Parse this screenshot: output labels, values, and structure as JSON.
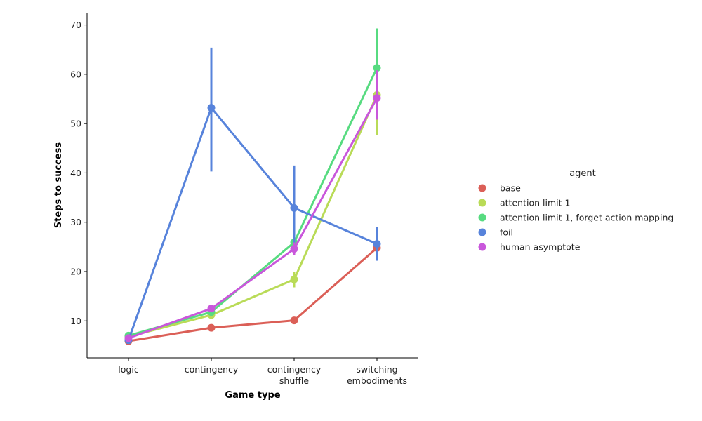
{
  "chart_data": {
    "type": "line",
    "xlabel": "Game type",
    "ylabel": "Steps to success",
    "categories": [
      [
        "logic"
      ],
      [
        "contingency"
      ],
      [
        "contingency",
        "shuffle"
      ],
      [
        "switching",
        "embodiments"
      ]
    ],
    "ylim": [
      2.5,
      72.5
    ],
    "yticks": [
      10,
      20,
      30,
      40,
      50,
      60,
      70
    ],
    "grid": false,
    "legend": {
      "title": "agent",
      "placement": "right"
    },
    "series": [
      {
        "name": "base",
        "color": "#db5f57",
        "values": [
          5.9,
          8.6,
          10.1,
          24.8
        ],
        "err_low": [
          5.7,
          8.3,
          9.8,
          23.3
        ],
        "err_high": [
          6.1,
          8.9,
          10.4,
          26.2
        ]
      },
      {
        "name": "attention limit 1",
        "color": "#b9db57",
        "values": [
          6.8,
          11.2,
          18.4,
          55.8
        ],
        "err_low": [
          6.5,
          10.5,
          16.8,
          47.7
        ],
        "err_high": [
          7.1,
          11.9,
          20.0,
          62.5
        ]
      },
      {
        "name": "attention limit 1, forget action mapping",
        "color": "#57db80",
        "values": [
          7.0,
          11.8,
          25.9,
          61.3
        ],
        "err_low": [
          6.7,
          11.0,
          24.5,
          53.0
        ],
        "err_high": [
          7.3,
          12.6,
          27.3,
          69.3
        ]
      },
      {
        "name": "foil",
        "color": "#5783db",
        "values": [
          6.1,
          53.2,
          32.9,
          25.6
        ],
        "err_low": [
          5.7,
          40.3,
          23.5,
          22.2
        ],
        "err_high": [
          6.5,
          65.4,
          41.5,
          29.1
        ]
      },
      {
        "name": "human asymptote",
        "color": "#c957db",
        "values": [
          6.5,
          12.5,
          24.6,
          55.2
        ],
        "err_low": [
          6.2,
          11.8,
          23.3,
          50.8
        ],
        "err_high": [
          6.8,
          13.2,
          25.9,
          60.8
        ]
      }
    ]
  }
}
